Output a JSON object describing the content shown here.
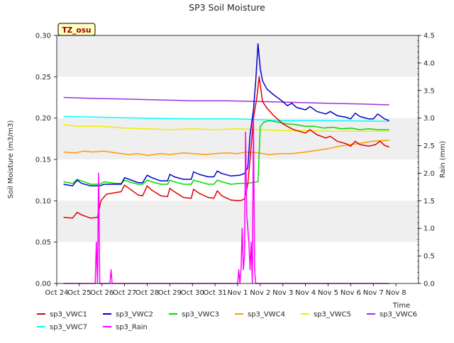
{
  "chart_data": {
    "type": "line",
    "title": "SP3 Soil Moisture",
    "ylabel": "Soil Moisture (m3/m3)",
    "y2label": "Rain (mm)",
    "xlabel": "Time",
    "badge": "TZ_osu",
    "x_ticks": [
      "Oct 24",
      "Oct 25",
      "Oct 26",
      "Oct 27",
      "Oct 28",
      "Oct 29",
      "Oct 30",
      "Oct 31",
      "Nov 1",
      "Nov 2",
      "Nov 3",
      "Nov 4",
      "Nov 5",
      "Nov 6",
      "Nov 7",
      "Nov 8"
    ],
    "y_ticks": [
      "0.00",
      "0.05",
      "0.10",
      "0.15",
      "0.20",
      "0.25",
      "0.30"
    ],
    "y2_ticks": [
      "0.0",
      "0.5",
      "1.0",
      "1.5",
      "2.0",
      "2.5",
      "3.0",
      "3.5",
      "4.0",
      "4.5"
    ],
    "xlim": [
      0,
      16
    ],
    "ylim": [
      0,
      0.3
    ],
    "y2lim": [
      0,
      4.5
    ],
    "grid_bands": true,
    "legend_position": "bottom",
    "series": [
      {
        "name": "sp3_VWC1",
        "color": "#e00000",
        "axis": "left",
        "points": [
          [
            0.3,
            0.08
          ],
          [
            0.7,
            0.079
          ],
          [
            0.9,
            0.086
          ],
          [
            1.1,
            0.083
          ],
          [
            1.5,
            0.079
          ],
          [
            1.8,
            0.08
          ],
          [
            1.95,
            0.1
          ],
          [
            2.2,
            0.108
          ],
          [
            2.6,
            0.11
          ],
          [
            2.85,
            0.111
          ],
          [
            3.0,
            0.119
          ],
          [
            3.2,
            0.115
          ],
          [
            3.6,
            0.107
          ],
          [
            3.8,
            0.106
          ],
          [
            4.0,
            0.118
          ],
          [
            4.2,
            0.113
          ],
          [
            4.6,
            0.106
          ],
          [
            4.9,
            0.105
          ],
          [
            5.0,
            0.115
          ],
          [
            5.2,
            0.111
          ],
          [
            5.6,
            0.104
          ],
          [
            5.95,
            0.103
          ],
          [
            6.05,
            0.114
          ],
          [
            6.3,
            0.109
          ],
          [
            6.7,
            0.104
          ],
          [
            6.95,
            0.103
          ],
          [
            7.1,
            0.112
          ],
          [
            7.3,
            0.106
          ],
          [
            7.7,
            0.101
          ],
          [
            8.1,
            0.1
          ],
          [
            8.3,
            0.102
          ],
          [
            8.45,
            0.12
          ],
          [
            8.55,
            0.15
          ],
          [
            8.7,
            0.2
          ],
          [
            8.85,
            0.225
          ],
          [
            8.95,
            0.25
          ],
          [
            9.1,
            0.22
          ],
          [
            9.3,
            0.212
          ],
          [
            9.6,
            0.203
          ],
          [
            10.0,
            0.193
          ],
          [
            10.4,
            0.187
          ],
          [
            10.6,
            0.185
          ],
          [
            11.0,
            0.182
          ],
          [
            11.2,
            0.186
          ],
          [
            11.5,
            0.18
          ],
          [
            11.9,
            0.176
          ],
          [
            12.1,
            0.178
          ],
          [
            12.4,
            0.172
          ],
          [
            12.8,
            0.169
          ],
          [
            13.0,
            0.166
          ],
          [
            13.2,
            0.172
          ],
          [
            13.4,
            0.168
          ],
          [
            13.8,
            0.166
          ],
          [
            14.1,
            0.168
          ],
          [
            14.3,
            0.172
          ],
          [
            14.5,
            0.167
          ],
          [
            14.7,
            0.165
          ]
        ]
      },
      {
        "name": "sp3_VWC2",
        "color": "#0000c8",
        "axis": "left",
        "points": [
          [
            0.3,
            0.12
          ],
          [
            0.7,
            0.118
          ],
          [
            0.9,
            0.125
          ],
          [
            1.1,
            0.121
          ],
          [
            1.5,
            0.118
          ],
          [
            1.9,
            0.118
          ],
          [
            2.1,
            0.12
          ],
          [
            2.6,
            0.12
          ],
          [
            2.85,
            0.12
          ],
          [
            3.0,
            0.128
          ],
          [
            3.2,
            0.126
          ],
          [
            3.6,
            0.122
          ],
          [
            3.8,
            0.122
          ],
          [
            4.0,
            0.131
          ],
          [
            4.2,
            0.128
          ],
          [
            4.6,
            0.124
          ],
          [
            4.9,
            0.124
          ],
          [
            5.0,
            0.132
          ],
          [
            5.2,
            0.129
          ],
          [
            5.6,
            0.126
          ],
          [
            5.95,
            0.126
          ],
          [
            6.05,
            0.135
          ],
          [
            6.3,
            0.132
          ],
          [
            6.7,
            0.129
          ],
          [
            6.95,
            0.129
          ],
          [
            7.1,
            0.136
          ],
          [
            7.3,
            0.133
          ],
          [
            7.7,
            0.13
          ],
          [
            8.1,
            0.131
          ],
          [
            8.3,
            0.133
          ],
          [
            8.45,
            0.14
          ],
          [
            8.55,
            0.18
          ],
          [
            8.7,
            0.21
          ],
          [
            8.8,
            0.245
          ],
          [
            8.9,
            0.29
          ],
          [
            9.0,
            0.26
          ],
          [
            9.1,
            0.245
          ],
          [
            9.3,
            0.235
          ],
          [
            9.6,
            0.228
          ],
          [
            10.0,
            0.22
          ],
          [
            10.2,
            0.215
          ],
          [
            10.4,
            0.218
          ],
          [
            10.6,
            0.213
          ],
          [
            11.0,
            0.21
          ],
          [
            11.2,
            0.214
          ],
          [
            11.5,
            0.208
          ],
          [
            11.9,
            0.205
          ],
          [
            12.1,
            0.208
          ],
          [
            12.4,
            0.203
          ],
          [
            12.8,
            0.201
          ],
          [
            13.0,
            0.199
          ],
          [
            13.2,
            0.206
          ],
          [
            13.4,
            0.202
          ],
          [
            13.8,
            0.199
          ],
          [
            14.0,
            0.199
          ],
          [
            14.2,
            0.205
          ],
          [
            14.5,
            0.199
          ],
          [
            14.7,
            0.197
          ]
        ]
      },
      {
        "name": "sp3_VWC3",
        "color": "#00dd00",
        "axis": "left",
        "points": [
          [
            0.3,
            0.123
          ],
          [
            0.7,
            0.121
          ],
          [
            0.9,
            0.126
          ],
          [
            1.1,
            0.124
          ],
          [
            1.5,
            0.12
          ],
          [
            1.9,
            0.12
          ],
          [
            2.1,
            0.123
          ],
          [
            2.6,
            0.121
          ],
          [
            2.85,
            0.121
          ],
          [
            3.0,
            0.125
          ],
          [
            3.2,
            0.123
          ],
          [
            3.6,
            0.12
          ],
          [
            3.8,
            0.12
          ],
          [
            4.0,
            0.125
          ],
          [
            4.2,
            0.123
          ],
          [
            4.6,
            0.12
          ],
          [
            4.9,
            0.12
          ],
          [
            5.0,
            0.125
          ],
          [
            5.2,
            0.123
          ],
          [
            5.6,
            0.12
          ],
          [
            5.95,
            0.12
          ],
          [
            6.05,
            0.125
          ],
          [
            6.3,
            0.123
          ],
          [
            6.7,
            0.12
          ],
          [
            6.95,
            0.12
          ],
          [
            7.1,
            0.125
          ],
          [
            7.3,
            0.123
          ],
          [
            7.7,
            0.12
          ],
          [
            8.1,
            0.121
          ],
          [
            8.4,
            0.121
          ],
          [
            8.9,
            0.123
          ],
          [
            9.0,
            0.19
          ],
          [
            9.15,
            0.195
          ],
          [
            9.4,
            0.197
          ],
          [
            9.8,
            0.195
          ],
          [
            10.2,
            0.193
          ],
          [
            10.6,
            0.192
          ],
          [
            11.0,
            0.19
          ],
          [
            11.4,
            0.19
          ],
          [
            11.8,
            0.188
          ],
          [
            12.2,
            0.189
          ],
          [
            12.6,
            0.187
          ],
          [
            13.0,
            0.188
          ],
          [
            13.4,
            0.186
          ],
          [
            13.8,
            0.187
          ],
          [
            14.2,
            0.186
          ],
          [
            14.7,
            0.186
          ]
        ]
      },
      {
        "name": "sp3_VWC4",
        "color": "#ff9900",
        "axis": "left",
        "points": [
          [
            0.3,
            0.159
          ],
          [
            0.8,
            0.158
          ],
          [
            1.2,
            0.16
          ],
          [
            1.6,
            0.159
          ],
          [
            2.1,
            0.16
          ],
          [
            2.6,
            0.158
          ],
          [
            3.2,
            0.156
          ],
          [
            3.6,
            0.157
          ],
          [
            4.0,
            0.155
          ],
          [
            4.6,
            0.157
          ],
          [
            5.0,
            0.156
          ],
          [
            5.6,
            0.158
          ],
          [
            6.0,
            0.157
          ],
          [
            6.6,
            0.156
          ],
          [
            7.0,
            0.157
          ],
          [
            7.5,
            0.158
          ],
          [
            8.0,
            0.157
          ],
          [
            8.4,
            0.159
          ],
          [
            8.9,
            0.158
          ],
          [
            9.4,
            0.156
          ],
          [
            9.9,
            0.157
          ],
          [
            10.4,
            0.157
          ],
          [
            11.0,
            0.159
          ],
          [
            11.5,
            0.161
          ],
          [
            12.0,
            0.163
          ],
          [
            12.5,
            0.166
          ],
          [
            13.0,
            0.168
          ],
          [
            13.5,
            0.17
          ],
          [
            14.0,
            0.172
          ],
          [
            14.5,
            0.173
          ],
          [
            14.7,
            0.173
          ]
        ]
      },
      {
        "name": "sp3_VWC5",
        "color": "#eeee00",
        "axis": "left",
        "points": [
          [
            0.3,
            0.192
          ],
          [
            1.0,
            0.19
          ],
          [
            2.0,
            0.19
          ],
          [
            3.0,
            0.188
          ],
          [
            4.0,
            0.187
          ],
          [
            5.0,
            0.186
          ],
          [
            6.0,
            0.187
          ],
          [
            7.0,
            0.186
          ],
          [
            8.0,
            0.187
          ],
          [
            9.0,
            0.186
          ],
          [
            10.0,
            0.185
          ],
          [
            11.0,
            0.185
          ],
          [
            12.0,
            0.184
          ],
          [
            13.0,
            0.184
          ],
          [
            14.0,
            0.184
          ],
          [
            14.7,
            0.184
          ]
        ]
      },
      {
        "name": "sp3_VWC6",
        "color": "#9933dd",
        "axis": "left",
        "points": [
          [
            0.3,
            0.225
          ],
          [
            1.5,
            0.224
          ],
          [
            3.0,
            0.223
          ],
          [
            4.5,
            0.222
          ],
          [
            6.0,
            0.221
          ],
          [
            7.5,
            0.221
          ],
          [
            9.0,
            0.22
          ],
          [
            10.5,
            0.219
          ],
          [
            12.0,
            0.218
          ],
          [
            13.5,
            0.217
          ],
          [
            14.7,
            0.216
          ]
        ]
      },
      {
        "name": "sp3_VWC7",
        "color": "#00ffff",
        "axis": "left",
        "points": [
          [
            0.3,
            0.202
          ],
          [
            2.0,
            0.201
          ],
          [
            4.0,
            0.2
          ],
          [
            6.0,
            0.199
          ],
          [
            8.0,
            0.199
          ],
          [
            9.0,
            0.198
          ],
          [
            10.0,
            0.197
          ],
          [
            12.0,
            0.197
          ],
          [
            14.7,
            0.196
          ]
        ]
      },
      {
        "name": "sp3_Rain",
        "color": "#ff00ff",
        "axis": "right",
        "points": [
          [
            0.3,
            0
          ],
          [
            1.7,
            0
          ],
          [
            1.75,
            0.75
          ],
          [
            1.8,
            0
          ],
          [
            1.85,
            2.0
          ],
          [
            1.9,
            0
          ],
          [
            2.35,
            0
          ],
          [
            2.4,
            0.25
          ],
          [
            2.45,
            0
          ],
          [
            8.0,
            0
          ],
          [
            8.05,
            0.25
          ],
          [
            8.1,
            0
          ],
          [
            8.15,
            0.25
          ],
          [
            8.2,
            1.0
          ],
          [
            8.25,
            0.25
          ],
          [
            8.3,
            0.5
          ],
          [
            8.35,
            2.75
          ],
          [
            8.4,
            1.25
          ],
          [
            8.5,
            0.75
          ],
          [
            8.55,
            0.25
          ],
          [
            8.6,
            0.75
          ],
          [
            8.65,
            0
          ],
          [
            8.7,
            3.0
          ],
          [
            8.75,
            0.25
          ],
          [
            8.8,
            0
          ],
          [
            14.7,
            0
          ]
        ]
      }
    ]
  }
}
